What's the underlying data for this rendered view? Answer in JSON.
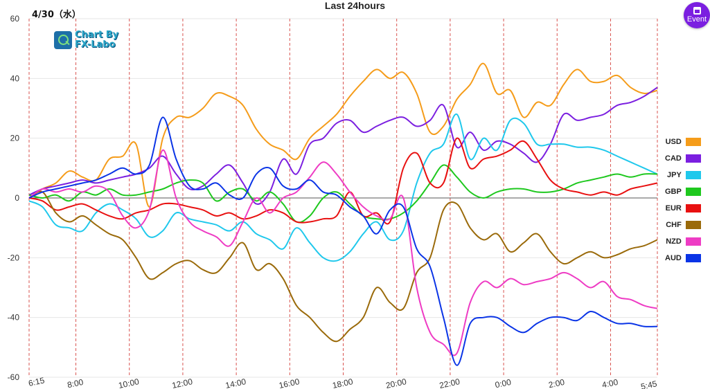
{
  "date_label": "4/30（水）",
  "watermark": {
    "line1": "Chart By",
    "line2": "FX-Labo"
  },
  "event_button": {
    "label": "Event",
    "icon": "calendar-icon"
  },
  "colors": {
    "USD": "#f59c1a",
    "CAD": "#7b1fe0",
    "JPY": "#1fc8ec",
    "GBP": "#1ec81e",
    "EUR": "#e81010",
    "CHF": "#9a6a0a",
    "NZD": "#ee3cc4",
    "AUD": "#0a34e6"
  },
  "chart_data": {
    "type": "line",
    "title": "Last 24hours",
    "xlabel": "",
    "ylabel": "",
    "ylim": [
      -60,
      60
    ],
    "yticks": [
      60,
      40,
      20,
      0,
      -20,
      -40,
      -60
    ],
    "x_unit": "hours since 6:15",
    "xlim": [
      0,
      23.5
    ],
    "xtick_labels": [
      "6:15",
      "8:00",
      "10:00",
      "12:00",
      "14:00",
      "16:00",
      "18:00",
      "20:00",
      "22:00",
      "0:00",
      "2:00",
      "4:00",
      "5:45"
    ],
    "xtick_hours": [
      0,
      1.75,
      3.75,
      5.75,
      7.75,
      9.75,
      11.75,
      13.75,
      15.75,
      17.75,
      19.75,
      21.75,
      23.5
    ],
    "grid": {
      "horizontal": true,
      "vertical_dashed": true
    },
    "legend_position": "right",
    "x": [
      0,
      0.5,
      1,
      1.5,
      2,
      2.5,
      3,
      3.5,
      4,
      4.5,
      5,
      5.5,
      6,
      6.5,
      7,
      7.5,
      8,
      8.5,
      9,
      9.5,
      10,
      10.5,
      11,
      11.5,
      12,
      12.5,
      13,
      13.5,
      14,
      14.5,
      15,
      15.5,
      16,
      16.5,
      17,
      17.5,
      18,
      18.5,
      19,
      19.5,
      20,
      20.5,
      21,
      21.5,
      22,
      22.5,
      23,
      23.5
    ],
    "series": [
      {
        "name": "USD",
        "values": [
          0,
          3,
          5,
          9,
          7,
          6,
          13,
          14,
          18,
          -3,
          20,
          27,
          27,
          30,
          35,
          34,
          31,
          23,
          18,
          16,
          13,
          20,
          24,
          28,
          34,
          39,
          43,
          40,
          42,
          35,
          22,
          24,
          33,
          38,
          45,
          35,
          36,
          27,
          32,
          31,
          38,
          43,
          39,
          39,
          41,
          37,
          35,
          36
        ]
      },
      {
        "name": "CAD",
        "values": [
          1,
          3,
          4,
          5,
          6,
          5,
          6,
          7,
          8,
          10,
          14,
          8,
          3,
          4,
          8,
          11,
          5,
          -2,
          2,
          13,
          8,
          18,
          20,
          25,
          26,
          22,
          24,
          26,
          27,
          24,
          26,
          31,
          17,
          22,
          16,
          19,
          18,
          15,
          12,
          18,
          28,
          26,
          27,
          28,
          31,
          32,
          34,
          37
        ]
      },
      {
        "name": "JPY",
        "values": [
          -1,
          -3,
          -9,
          -10,
          -11,
          -5,
          -2,
          -4,
          -7,
          -13,
          -11,
          -5,
          -7,
          -8,
          -9,
          -11,
          -8,
          -12,
          -14,
          -17,
          -10,
          -15,
          -20,
          -21,
          -18,
          -12,
          -8,
          -14,
          -11,
          5,
          15,
          18,
          28,
          13,
          20,
          16,
          26,
          25,
          18,
          18,
          18,
          17,
          17,
          16,
          14,
          12,
          10,
          8
        ]
      },
      {
        "name": "GBP",
        "values": [
          1,
          0,
          1,
          -1,
          2,
          1,
          3,
          1,
          1,
          2,
          3,
          5,
          6,
          5,
          -1,
          2,
          3,
          -1,
          2,
          -2,
          -8,
          -6,
          0,
          2,
          -2,
          -6,
          -7,
          -7,
          -5,
          -1,
          5,
          11,
          7,
          2,
          0,
          2,
          3,
          3,
          2,
          2,
          3,
          5,
          6,
          7,
          8,
          7,
          8,
          8
        ]
      },
      {
        "name": "EUR",
        "values": [
          0,
          -1,
          -4,
          -3,
          -2,
          -4,
          -6,
          -7,
          -5,
          -4,
          -2,
          -2,
          -3,
          -4,
          -6,
          -5,
          -7,
          -6,
          -4,
          -5,
          -8,
          -8,
          -7,
          -6,
          2,
          -6,
          -5,
          -8,
          10,
          15,
          5,
          5,
          20,
          10,
          13,
          14,
          16,
          19,
          13,
          6,
          3,
          2,
          1,
          2,
          1,
          3,
          4,
          5
        ]
      },
      {
        "name": "CHF",
        "values": [
          0,
          2,
          -5,
          -8,
          -6,
          -9,
          -12,
          -14,
          -20,
          -27,
          -25,
          -22,
          -21,
          -24,
          -25,
          -20,
          -15,
          -24,
          -22,
          -27,
          -36,
          -40,
          -45,
          -48,
          -44,
          -40,
          -30,
          -35,
          -37,
          -25,
          -20,
          -4,
          -2,
          -10,
          -14,
          -12,
          -18,
          -15,
          -12,
          -18,
          -22,
          -20,
          -18,
          -20,
          -19,
          -17,
          -16,
          -14
        ]
      },
      {
        "name": "NZD",
        "values": [
          0,
          3,
          2,
          3,
          2,
          4,
          2,
          -6,
          -10,
          -4,
          16,
          0,
          -8,
          -11,
          -13,
          -16,
          -8,
          0,
          -5,
          0,
          2,
          7,
          12,
          8,
          2,
          -3,
          -6,
          -7,
          0,
          -30,
          -45,
          -49,
          -52,
          -35,
          -28,
          -30,
          -27,
          -29,
          -28,
          -27,
          -25,
          -27,
          -30,
          -28,
          -33,
          -34,
          -36,
          -37
        ]
      },
      {
        "name": "AUD",
        "values": [
          0,
          2,
          3,
          4,
          5,
          6,
          8,
          10,
          8,
          11,
          27,
          13,
          4,
          3,
          5,
          1,
          0,
          8,
          10,
          4,
          3,
          6,
          2,
          1,
          -3,
          -6,
          -12,
          -4,
          -3,
          -17,
          -23,
          -40,
          -56,
          -42,
          -40,
          -40,
          -43,
          -45,
          -42,
          -40,
          -40,
          -41,
          -38,
          -40,
          -42,
          -42,
          -43,
          -43
        ]
      }
    ]
  }
}
